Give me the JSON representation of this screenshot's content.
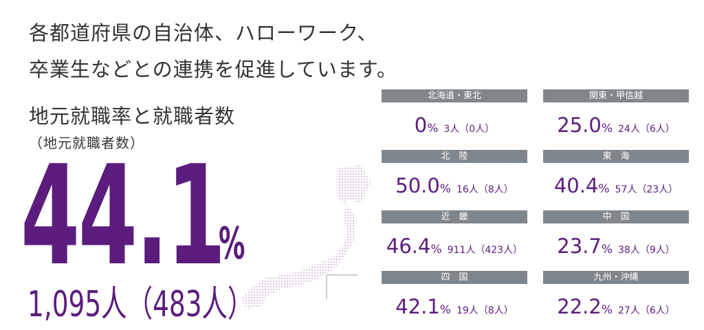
{
  "heading": {
    "lines": [
      "各都道府県の自治体、ハローワーク、",
      "卒業生などとの連携を促進しています。"
    ]
  },
  "summary": {
    "title": "地元就職率と就職者数",
    "subtitle": "（地元就職者数）",
    "rate": "44.1",
    "unit": "%",
    "count": "1,095人（483人）"
  },
  "regions": [
    {
      "name": "北海道・東北",
      "rate": "0",
      "unit": "%",
      "count": "3人（0人）"
    },
    {
      "name": "関東・甲信越",
      "rate": "25.0",
      "unit": "%",
      "count": "24人（6人）"
    },
    {
      "name": "北　陸",
      "rate": "50.0",
      "unit": "%",
      "count": "16人（8人）"
    },
    {
      "name": "東　海",
      "rate": "40.4",
      "unit": "%",
      "count": "57人（23人）"
    },
    {
      "name": "近　畿",
      "rate": "46.4",
      "unit": "%",
      "count": "911人（423人）"
    },
    {
      "name": "中　国",
      "rate": "23.7",
      "unit": "%",
      "count": "38人（9人）"
    },
    {
      "name": "四　国",
      "rate": "42.1",
      "unit": "%",
      "count": "19人（8人）"
    },
    {
      "name": "九州・沖縄",
      "rate": "22.2",
      "unit": "%",
      "count": "27人（6人）"
    }
  ]
}
